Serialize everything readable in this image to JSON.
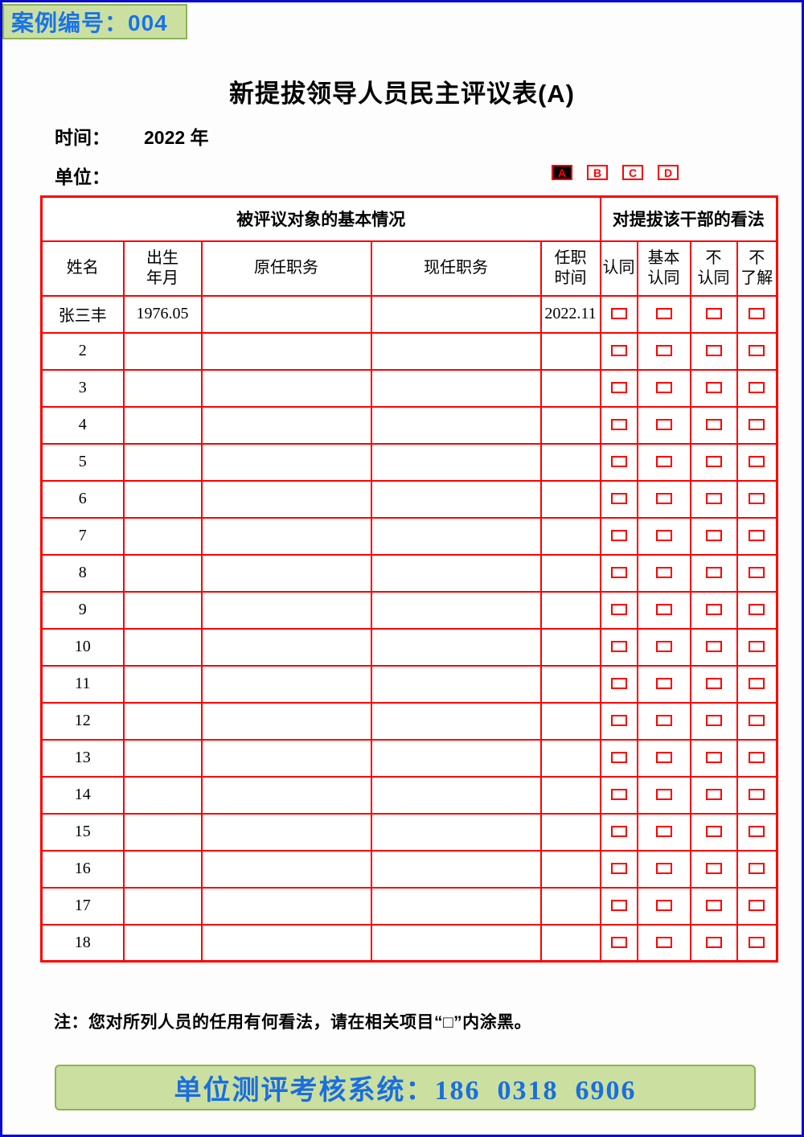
{
  "badge": {
    "label": "案例编号：004"
  },
  "title": "新提拔领导人员民主评议表(A)",
  "meta": {
    "time_label": "时间：",
    "time_value": "2022 年",
    "unit_label": "单位："
  },
  "option_boxes": [
    {
      "label": "A",
      "filled": true
    },
    {
      "label": "B",
      "filled": false
    },
    {
      "label": "C",
      "filled": false
    },
    {
      "label": "D",
      "filled": false
    }
  ],
  "table": {
    "group_headers": {
      "left": "被评议对象的基本情况",
      "right": "对提拔该干部的看法"
    },
    "columns": [
      "姓名",
      "出生\n年月",
      "原任职务",
      "现任职务",
      "任职\n时间",
      "认同",
      "基本\n认同",
      "不\n认同",
      "不\n了解"
    ],
    "rows": [
      {
        "name": "张三丰",
        "birth": "1976.05",
        "former": "",
        "current": "",
        "tenure": "2022.11"
      },
      {
        "name": "2",
        "birth": "",
        "former": "",
        "current": "",
        "tenure": ""
      },
      {
        "name": "3",
        "birth": "",
        "former": "",
        "current": "",
        "tenure": ""
      },
      {
        "name": "4",
        "birth": "",
        "former": "",
        "current": "",
        "tenure": ""
      },
      {
        "name": "5",
        "birth": "",
        "former": "",
        "current": "",
        "tenure": ""
      },
      {
        "name": "6",
        "birth": "",
        "former": "",
        "current": "",
        "tenure": ""
      },
      {
        "name": "7",
        "birth": "",
        "former": "",
        "current": "",
        "tenure": ""
      },
      {
        "name": "8",
        "birth": "",
        "former": "",
        "current": "",
        "tenure": ""
      },
      {
        "name": "9",
        "birth": "",
        "former": "",
        "current": "",
        "tenure": ""
      },
      {
        "name": "10",
        "birth": "",
        "former": "",
        "current": "",
        "tenure": ""
      },
      {
        "name": "11",
        "birth": "",
        "former": "",
        "current": "",
        "tenure": ""
      },
      {
        "name": "12",
        "birth": "",
        "former": "",
        "current": "",
        "tenure": ""
      },
      {
        "name": "13",
        "birth": "",
        "former": "",
        "current": "",
        "tenure": ""
      },
      {
        "name": "14",
        "birth": "",
        "former": "",
        "current": "",
        "tenure": ""
      },
      {
        "name": "15",
        "birth": "",
        "former": "",
        "current": "",
        "tenure": ""
      },
      {
        "name": "16",
        "birth": "",
        "former": "",
        "current": "",
        "tenure": ""
      },
      {
        "name": "17",
        "birth": "",
        "former": "",
        "current": "",
        "tenure": ""
      },
      {
        "name": "18",
        "birth": "",
        "former": "",
        "current": "",
        "tenure": ""
      }
    ]
  },
  "note": "注：您对所列人员的任用有何看法，请在相关项目“□”内涂黑。",
  "footer": {
    "text": "单位测评考核系统：186  0318  6906"
  },
  "colors": {
    "page_border": "#0909cf",
    "table_red": "#ff0000",
    "badge_green_bg": "#cbe0a0",
    "badge_green_border": "#8ab357",
    "accent_blue_text": "#1a73e8",
    "footer_blue_text": "#1a6ede"
  }
}
